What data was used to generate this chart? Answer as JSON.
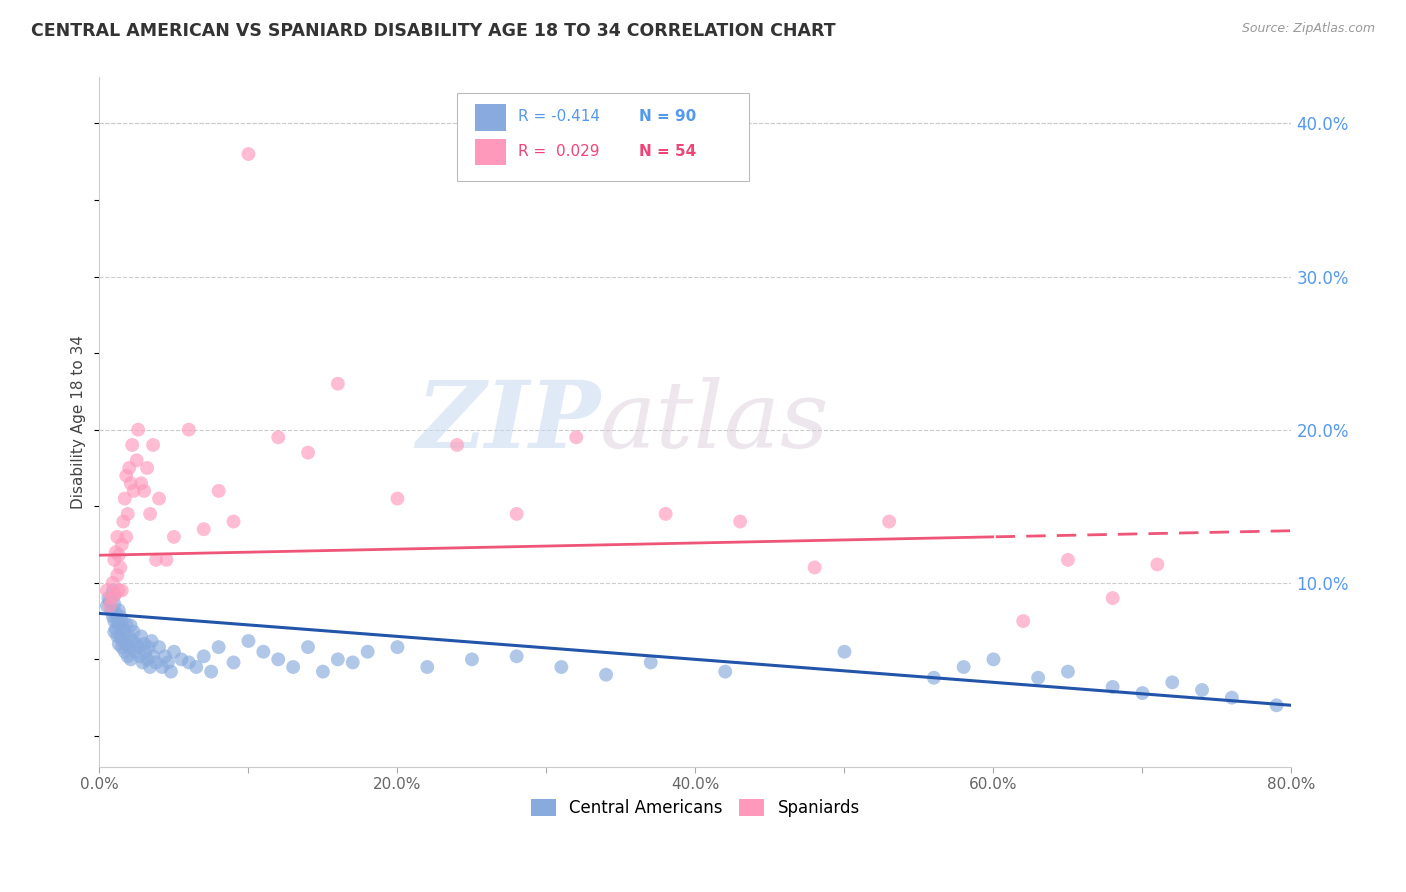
{
  "title": "CENTRAL AMERICAN VS SPANIARD DISABILITY AGE 18 TO 34 CORRELATION CHART",
  "source": "Source: ZipAtlas.com",
  "ylabel": "Disability Age 18 to 34",
  "xlim": [
    0.0,
    0.8
  ],
  "ylim": [
    -0.02,
    0.43
  ],
  "yticks_right": [
    0.1,
    0.2,
    0.3,
    0.4
  ],
  "ytick_labels_right": [
    "10.0%",
    "20.0%",
    "30.0%",
    "40.0%"
  ],
  "xticks": [
    0.0,
    0.1,
    0.2,
    0.3,
    0.4,
    0.5,
    0.6,
    0.7,
    0.8
  ],
  "xtick_labels": [
    "0.0%",
    "",
    "20.0%",
    "",
    "40.0%",
    "",
    "60.0%",
    "",
    "80.0%"
  ],
  "blue_color": "#88AADD",
  "pink_color": "#FF99BB",
  "blue_line_color": "#2255AA",
  "pink_line_color": "#EE5577",
  "legend_blue_label": "Central Americans",
  "legend_pink_label": "Spaniards",
  "watermark_zip": "ZIP",
  "watermark_atlas": "atlas",
  "blue_R": -0.414,
  "blue_N": 90,
  "pink_R": 0.029,
  "pink_N": 54,
  "pink_trend_split": 0.6,
  "blue_scatter_x": [
    0.005,
    0.006,
    0.007,
    0.008,
    0.009,
    0.009,
    0.01,
    0.01,
    0.01,
    0.01,
    0.011,
    0.011,
    0.012,
    0.012,
    0.013,
    0.013,
    0.013,
    0.014,
    0.014,
    0.015,
    0.015,
    0.016,
    0.016,
    0.017,
    0.017,
    0.018,
    0.018,
    0.019,
    0.02,
    0.02,
    0.021,
    0.021,
    0.022,
    0.023,
    0.024,
    0.025,
    0.026,
    0.027,
    0.028,
    0.029,
    0.03,
    0.031,
    0.032,
    0.033,
    0.034,
    0.035,
    0.036,
    0.038,
    0.04,
    0.042,
    0.044,
    0.046,
    0.048,
    0.05,
    0.055,
    0.06,
    0.065,
    0.07,
    0.075,
    0.08,
    0.09,
    0.1,
    0.11,
    0.12,
    0.13,
    0.14,
    0.15,
    0.16,
    0.17,
    0.18,
    0.2,
    0.22,
    0.25,
    0.28,
    0.31,
    0.34,
    0.37,
    0.42,
    0.5,
    0.56,
    0.58,
    0.6,
    0.63,
    0.65,
    0.68,
    0.7,
    0.72,
    0.74,
    0.76,
    0.79
  ],
  "blue_scatter_y": [
    0.085,
    0.09,
    0.088,
    0.082,
    0.095,
    0.078,
    0.092,
    0.086,
    0.075,
    0.068,
    0.08,
    0.07,
    0.076,
    0.065,
    0.082,
    0.072,
    0.06,
    0.078,
    0.065,
    0.075,
    0.058,
    0.07,
    0.062,
    0.068,
    0.055,
    0.073,
    0.06,
    0.052,
    0.065,
    0.058,
    0.072,
    0.05,
    0.062,
    0.068,
    0.055,
    0.06,
    0.058,
    0.052,
    0.065,
    0.048,
    0.06,
    0.055,
    0.05,
    0.058,
    0.045,
    0.062,
    0.052,
    0.048,
    0.058,
    0.045,
    0.052,
    0.048,
    0.042,
    0.055,
    0.05,
    0.048,
    0.045,
    0.052,
    0.042,
    0.058,
    0.048,
    0.062,
    0.055,
    0.05,
    0.045,
    0.058,
    0.042,
    0.05,
    0.048,
    0.055,
    0.058,
    0.045,
    0.05,
    0.052,
    0.045,
    0.04,
    0.048,
    0.042,
    0.055,
    0.038,
    0.045,
    0.05,
    0.038,
    0.042,
    0.032,
    0.028,
    0.035,
    0.03,
    0.025,
    0.02
  ],
  "pink_scatter_x": [
    0.005,
    0.007,
    0.008,
    0.009,
    0.01,
    0.01,
    0.011,
    0.012,
    0.012,
    0.013,
    0.013,
    0.014,
    0.015,
    0.015,
    0.016,
    0.017,
    0.018,
    0.018,
    0.019,
    0.02,
    0.021,
    0.022,
    0.023,
    0.025,
    0.026,
    0.028,
    0.03,
    0.032,
    0.034,
    0.036,
    0.038,
    0.04,
    0.045,
    0.05,
    0.06,
    0.07,
    0.08,
    0.09,
    0.1,
    0.12,
    0.14,
    0.16,
    0.2,
    0.24,
    0.28,
    0.32,
    0.38,
    0.43,
    0.48,
    0.53,
    0.62,
    0.65,
    0.68,
    0.71
  ],
  "pink_scatter_y": [
    0.095,
    0.085,
    0.09,
    0.1,
    0.092,
    0.115,
    0.12,
    0.105,
    0.13,
    0.118,
    0.095,
    0.11,
    0.125,
    0.095,
    0.14,
    0.155,
    0.17,
    0.13,
    0.145,
    0.175,
    0.165,
    0.19,
    0.16,
    0.18,
    0.2,
    0.165,
    0.16,
    0.175,
    0.145,
    0.19,
    0.115,
    0.155,
    0.115,
    0.13,
    0.2,
    0.135,
    0.16,
    0.14,
    0.38,
    0.195,
    0.185,
    0.23,
    0.155,
    0.19,
    0.145,
    0.195,
    0.145,
    0.14,
    0.11,
    0.14,
    0.075,
    0.115,
    0.09,
    0.112
  ]
}
